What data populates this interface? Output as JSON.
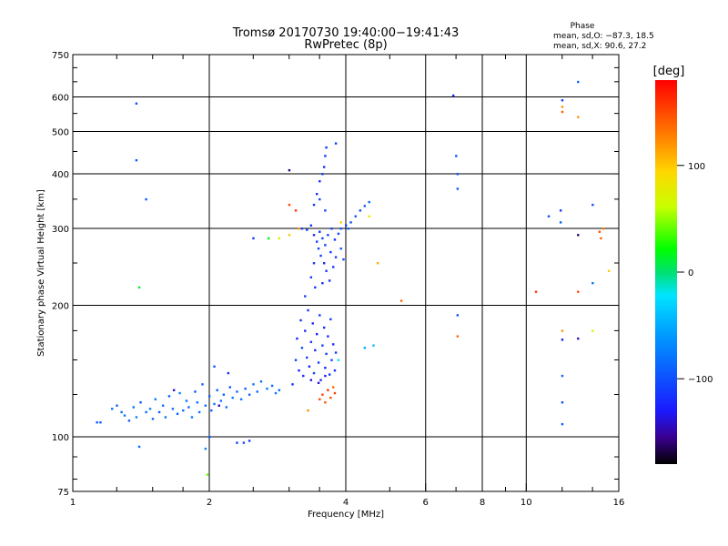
{
  "chart_data": {
    "type": "scatter",
    "title": "Tromsø 20170730 19:40:00−19:41:43",
    "subtitle": "RwPretec (8p)",
    "xlabel": "Frequency [MHz]",
    "ylabel": "Stationary phase Virtual Height [km]",
    "x_scale": "log",
    "y_scale": "log",
    "xlim": [
      1,
      16
    ],
    "ylim": [
      75,
      750
    ],
    "x_ticks": [
      1,
      2,
      4,
      6,
      8,
      10,
      16
    ],
    "y_ticks": [
      75,
      100,
      200,
      300,
      400,
      500,
      600,
      750
    ],
    "x_tick_labels": [
      "1",
      "2",
      "4",
      "6",
      "8",
      "10",
      "16"
    ],
    "y_tick_labels": [
      "75",
      "100",
      "200",
      "300",
      "400",
      "500",
      "600",
      "750"
    ],
    "grid": true,
    "stats": {
      "heading": "Phase",
      "line_o": "mean, sd,O: −87.3, 18.5",
      "line_x": "mean, sd,X:  90.6, 27.2"
    },
    "colorbar": {
      "label": "[deg]",
      "range": [
        -180,
        180
      ],
      "ticks": [
        100,
        0,
        -100
      ],
      "tick_labels": [
        "100",
        "0",
        "−100"
      ]
    },
    "series": [
      {
        "comment_free": true,
        "points": [
          [
            1.13,
            108,
            -95
          ],
          [
            1.15,
            108,
            -92
          ],
          [
            1.22,
            116,
            -80
          ],
          [
            1.25,
            118,
            -90
          ],
          [
            1.28,
            114,
            -85
          ],
          [
            1.3,
            112,
            -75
          ],
          [
            1.33,
            109,
            -90
          ],
          [
            1.36,
            117,
            -80
          ],
          [
            1.38,
            111,
            -70
          ],
          [
            1.41,
            120,
            -95
          ],
          [
            1.45,
            114,
            -85
          ],
          [
            1.48,
            116,
            -70
          ],
          [
            1.5,
            110,
            -88
          ],
          [
            1.52,
            122,
            -75
          ],
          [
            1.55,
            114,
            -90
          ],
          [
            1.58,
            118,
            -80
          ],
          [
            1.6,
            111,
            -78
          ],
          [
            1.63,
            124,
            -92
          ],
          [
            1.66,
            116,
            -82
          ],
          [
            1.7,
            113,
            -90
          ],
          [
            1.72,
            126,
            -70
          ],
          [
            1.75,
            115,
            -85
          ],
          [
            1.78,
            121,
            -80
          ],
          [
            1.8,
            117,
            -88
          ],
          [
            1.83,
            111,
            -75
          ],
          [
            1.86,
            127,
            -95
          ],
          [
            1.88,
            120,
            -80
          ],
          [
            1.9,
            114,
            -78
          ],
          [
            1.93,
            132,
            -88
          ],
          [
            1.96,
            118,
            -80
          ],
          [
            2.0,
            124,
            -92
          ],
          [
            2.02,
            115,
            -85
          ],
          [
            2.05,
            119,
            -75
          ],
          [
            2.08,
            128,
            -88
          ],
          [
            2.12,
            121,
            -80
          ],
          [
            2.15,
            125,
            -90
          ],
          [
            2.18,
            117,
            -82
          ],
          [
            2.22,
            130,
            -95
          ],
          [
            2.25,
            123,
            -75
          ],
          [
            2.3,
            127,
            -85
          ],
          [
            2.35,
            122,
            -80
          ],
          [
            2.4,
            129,
            -90
          ],
          [
            2.45,
            125,
            -88
          ],
          [
            2.5,
            132,
            -78
          ],
          [
            2.55,
            127,
            -85
          ],
          [
            2.6,
            134,
            -80
          ],
          [
            2.68,
            129,
            -75
          ],
          [
            2.75,
            131,
            -85
          ],
          [
            2.8,
            126,
            -78
          ],
          [
            2.85,
            128,
            -82
          ],
          [
            1.4,
            95,
            -80
          ],
          [
            1.96,
            94,
            -70
          ],
          [
            2.0,
            100,
            -95
          ],
          [
            2.3,
            97,
            -110
          ],
          [
            2.38,
            97,
            -105
          ],
          [
            2.45,
            98,
            -115
          ],
          [
            1.98,
            82,
            40
          ],
          [
            2.1,
            118,
            -150
          ],
          [
            2.2,
            140,
            -120
          ],
          [
            1.67,
            128,
            -140
          ],
          [
            2.05,
            145,
            -100
          ]
        ]
      },
      {
        "points": [
          [
            3.05,
            132,
            -120
          ],
          [
            3.1,
            150,
            -110
          ],
          [
            3.12,
            168,
            -125
          ],
          [
            3.15,
            142,
            -130
          ],
          [
            3.18,
            185,
            -115
          ],
          [
            3.2,
            160,
            -105
          ],
          [
            3.22,
            138,
            -118
          ],
          [
            3.25,
            175,
            -122
          ],
          [
            3.28,
            152,
            -108
          ],
          [
            3.3,
            195,
            -112
          ],
          [
            3.32,
            145,
            -125
          ],
          [
            3.35,
            165,
            -110
          ],
          [
            3.38,
            182,
            -120
          ],
          [
            3.4,
            140,
            -105
          ],
          [
            3.42,
            158,
            -118
          ],
          [
            3.45,
            172,
            -128
          ],
          [
            3.48,
            148,
            -112
          ],
          [
            3.5,
            190,
            -115
          ],
          [
            3.52,
            135,
            -122
          ],
          [
            3.55,
            162,
            -108
          ],
          [
            3.58,
            178,
            -118
          ],
          [
            3.6,
            144,
            -125
          ],
          [
            3.62,
            155,
            -110
          ],
          [
            3.65,
            170,
            -120
          ],
          [
            3.68,
            139,
            -115
          ],
          [
            3.7,
            186,
            -112
          ],
          [
            3.72,
            150,
            -105
          ],
          [
            3.75,
            163,
            -122
          ],
          [
            3.78,
            142,
            -118
          ],
          [
            3.8,
            156,
            -110
          ],
          [
            3.35,
            135,
            -135
          ],
          [
            3.48,
            133,
            -140
          ],
          [
            3.6,
            138,
            -130
          ]
        ]
      },
      {
        "points": [
          [
            3.5,
            122,
            150
          ],
          [
            3.55,
            125,
            155
          ],
          [
            3.6,
            120,
            145
          ],
          [
            3.65,
            128,
            160
          ],
          [
            3.7,
            123,
            150
          ],
          [
            3.75,
            130,
            140
          ],
          [
            3.78,
            126,
            155
          ],
          [
            3.3,
            115,
            120
          ],
          [
            3.85,
            150,
            -20
          ]
        ]
      },
      {
        "points": [
          [
            3.2,
            300,
            -110
          ],
          [
            3.28,
            298,
            -100
          ],
          [
            3.35,
            305,
            -115
          ],
          [
            3.4,
            290,
            -120
          ],
          [
            3.45,
            280,
            -105
          ],
          [
            3.48,
            270,
            -110
          ],
          [
            3.5,
            295,
            -118
          ],
          [
            3.52,
            260,
            -112
          ],
          [
            3.55,
            285,
            -105
          ],
          [
            3.58,
            250,
            -120
          ],
          [
            3.6,
            275,
            -110
          ],
          [
            3.62,
            240,
            -115
          ],
          [
            3.65,
            290,
            -108
          ],
          [
            3.68,
            228,
            -118
          ],
          [
            3.7,
            265,
            -112
          ],
          [
            3.72,
            300,
            -105
          ],
          [
            3.75,
            245,
            -115
          ],
          [
            3.78,
            283,
            -120
          ],
          [
            3.8,
            258,
            -110
          ],
          [
            3.85,
            292,
            -105
          ],
          [
            3.9,
            300,
            -100
          ],
          [
            4.0,
            305,
            -110
          ],
          [
            4.05,
            300,
            -90
          ],
          [
            4.1,
            310,
            -100
          ],
          [
            4.2,
            320,
            -95
          ],
          [
            4.3,
            330,
            -100
          ],
          [
            4.4,
            338,
            -92
          ],
          [
            4.5,
            345,
            -88
          ],
          [
            3.4,
            340,
            -110
          ],
          [
            3.45,
            360,
            -115
          ],
          [
            3.5,
            385,
            -120
          ],
          [
            3.55,
            400,
            -110
          ],
          [
            3.58,
            415,
            -118
          ],
          [
            3.6,
            440,
            -112
          ],
          [
            3.62,
            460,
            -115
          ],
          [
            3.5,
            350,
            -105
          ],
          [
            3.6,
            330,
            -108
          ],
          [
            3.4,
            250,
            -112
          ],
          [
            3.35,
            232,
            -110
          ],
          [
            3.42,
            220,
            -115
          ],
          [
            3.55,
            225,
            -120
          ],
          [
            3.25,
            210,
            -105
          ],
          [
            3.9,
            270,
            -95
          ],
          [
            3.95,
            255,
            -100
          ]
        ]
      },
      {
        "points": [
          [
            1.38,
            580,
            -100
          ],
          [
            1.38,
            430,
            -95
          ],
          [
            1.45,
            350,
            -95
          ],
          [
            1.4,
            220,
            10
          ],
          [
            2.5,
            285,
            -110
          ],
          [
            2.7,
            285,
            20
          ],
          [
            2.85,
            285,
            60
          ],
          [
            3.0,
            408,
            -160
          ],
          [
            3.0,
            340,
            150
          ],
          [
            3.1,
            330,
            160
          ],
          [
            3.15,
            300,
            120
          ],
          [
            3.0,
            290,
            100
          ],
          [
            3.8,
            470,
            -110
          ],
          [
            3.9,
            310,
            100
          ],
          [
            4.5,
            320,
            80
          ],
          [
            4.7,
            250,
            110
          ],
          [
            5.3,
            205,
            140
          ],
          [
            6.9,
            605,
            -120
          ],
          [
            7.0,
            440,
            -100
          ],
          [
            7.05,
            400,
            -100
          ],
          [
            7.05,
            370,
            -95
          ],
          [
            7.05,
            190,
            -100
          ],
          [
            7.05,
            170,
            140
          ],
          [
            10.5,
            215,
            160
          ],
          [
            11.2,
            320,
            -100
          ],
          [
            11.9,
            330,
            -115
          ],
          [
            11.9,
            310,
            -90
          ],
          [
            12.0,
            590,
            -110
          ],
          [
            12.0,
            570,
            120
          ],
          [
            12.0,
            555,
            140
          ],
          [
            12.0,
            175,
            120
          ],
          [
            12.0,
            167,
            -130
          ],
          [
            12.0,
            138,
            -90
          ],
          [
            12.0,
            120,
            -100
          ],
          [
            12.0,
            107,
            -95
          ],
          [
            13.0,
            650,
            -90
          ],
          [
            13.0,
            540,
            120
          ],
          [
            13.0,
            290,
            -160
          ],
          [
            13.0,
            215,
            150
          ],
          [
            13.0,
            168,
            -140
          ],
          [
            14.0,
            340,
            -100
          ],
          [
            14.0,
            225,
            -80
          ],
          [
            14.0,
            175,
            60
          ],
          [
            14.5,
            295,
            150
          ],
          [
            14.6,
            285,
            140
          ],
          [
            14.8,
            300,
            130
          ],
          [
            15.2,
            240,
            100
          ],
          [
            4.4,
            160,
            -50
          ],
          [
            4.6,
            162,
            -40
          ]
        ]
      }
    ]
  }
}
